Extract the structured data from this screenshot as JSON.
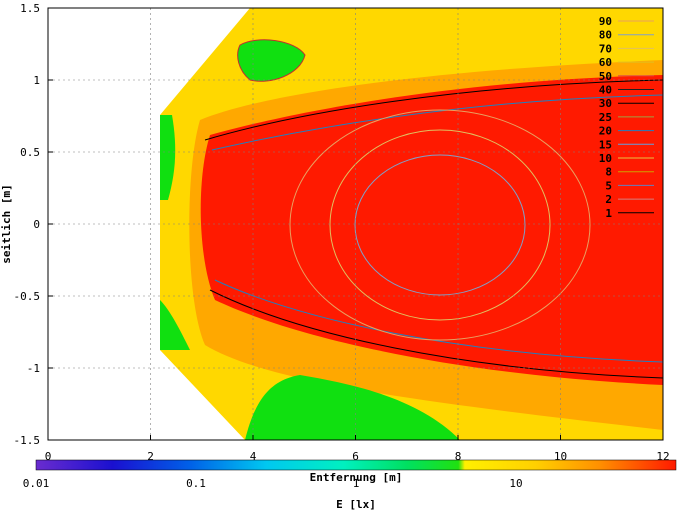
{
  "chart_data": {
    "type": "heatmap",
    "xlabel": "Entfernung [m]",
    "ylabel": "seitlich [m]",
    "colorbar_label": "E [lx]",
    "xlim": [
      0,
      12
    ],
    "ylim": [
      -1.5,
      1.5
    ],
    "x_ticks": [
      "0",
      "2",
      "4",
      "6",
      "8",
      "10",
      "12"
    ],
    "y_ticks": [
      "1.5",
      "1",
      "0.5",
      "0",
      "-0.5",
      "-1",
      "-1.5"
    ],
    "colorbar_ticks": [
      "0.01",
      "0.1",
      "1",
      "10"
    ],
    "colorbar_scale": "log",
    "colorbar_range": [
      0.01,
      100
    ],
    "grid": true,
    "legend_position": "top-right",
    "contour_levels": [
      "90",
      "80",
      "70",
      "60",
      "50",
      "40",
      "30",
      "25",
      "20",
      "15",
      "10",
      "8",
      "5",
      "2",
      "1"
    ],
    "contour_colors": [
      "#e8a060",
      "#80a0c8",
      "#e0c060",
      "#e0c020",
      "#e05040",
      "#202020",
      "#000000",
      "#a0a040",
      "#2080c0",
      "#60a0e0",
      "#e8c040",
      "#d0a000",
      "#6080c0",
      "#d08080",
      "#000000"
    ],
    "colors": {
      "low": "#00e000",
      "mid": "#ffd200",
      "high": "#ff1a00"
    }
  }
}
